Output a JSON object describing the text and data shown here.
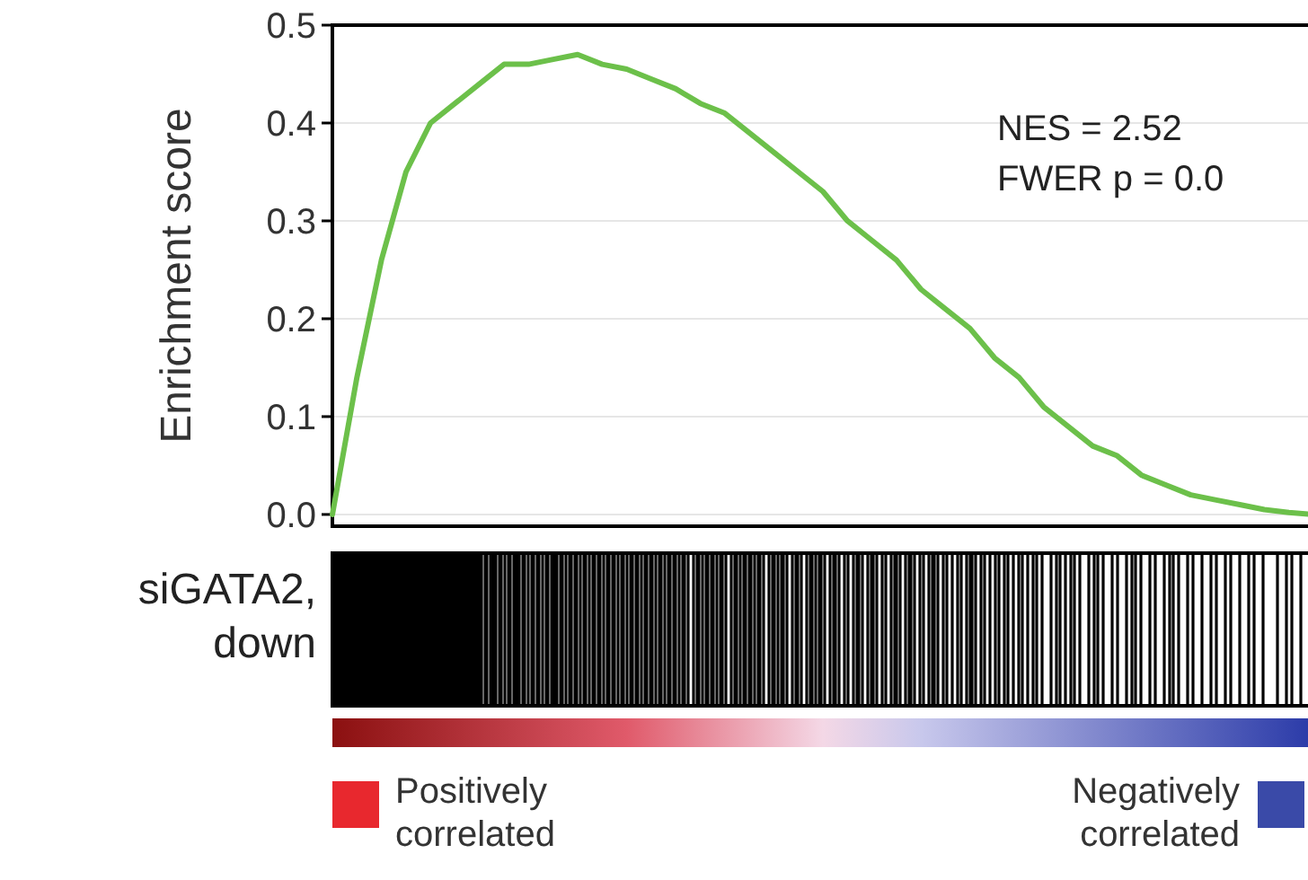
{
  "chart_data": {
    "type": "line",
    "ylabel": "Enrichment score",
    "categories": [
      null,
      null,
      null,
      null,
      null,
      null,
      null,
      null,
      null,
      null,
      null,
      null,
      null,
      null,
      null,
      null,
      null,
      null,
      null,
      null,
      null,
      null,
      null,
      null,
      null,
      null,
      null,
      null,
      null,
      null,
      null,
      null,
      null,
      null,
      null,
      null,
      null,
      null,
      null,
      null,
      null
    ],
    "series": [
      {
        "color": "#6cc04a",
        "values": [
          0,
          0.14,
          0.26,
          0.35,
          0.4,
          0.42,
          0.44,
          0.46,
          0.46,
          0.465,
          0.47,
          0.46,
          0.455,
          0.445,
          0.435,
          0.42,
          0.41,
          0.39,
          0.37,
          0.35,
          0.33,
          0.3,
          0.28,
          0.26,
          0.23,
          0.21,
          0.19,
          0.16,
          0.14,
          0.11,
          0.09,
          0.07,
          0.06,
          0.04,
          0.03,
          0.02,
          0.015,
          0.01,
          0.005,
          0.002,
          0
        ]
      }
    ],
    "ylim": [
      -0.012,
      0.5
    ],
    "yticks": [
      {
        "value": 0,
        "label": "0.0"
      },
      {
        "value": 0.1,
        "label": "0.1"
      },
      {
        "value": 0.2,
        "label": "0.2"
      },
      {
        "value": 0.3,
        "label": "0.3"
      },
      {
        "value": 0.4,
        "label": "0.4"
      },
      {
        "value": 0.5,
        "label": "0.5"
      }
    ],
    "grid": "y",
    "marker": "none",
    "line_style": "solid",
    "annotations": [
      "NES = 2.52",
      "FWER p = 0.0",
      "siGATA2, down",
      "Positively correlated",
      "Negatively correlated"
    ]
  }
}
